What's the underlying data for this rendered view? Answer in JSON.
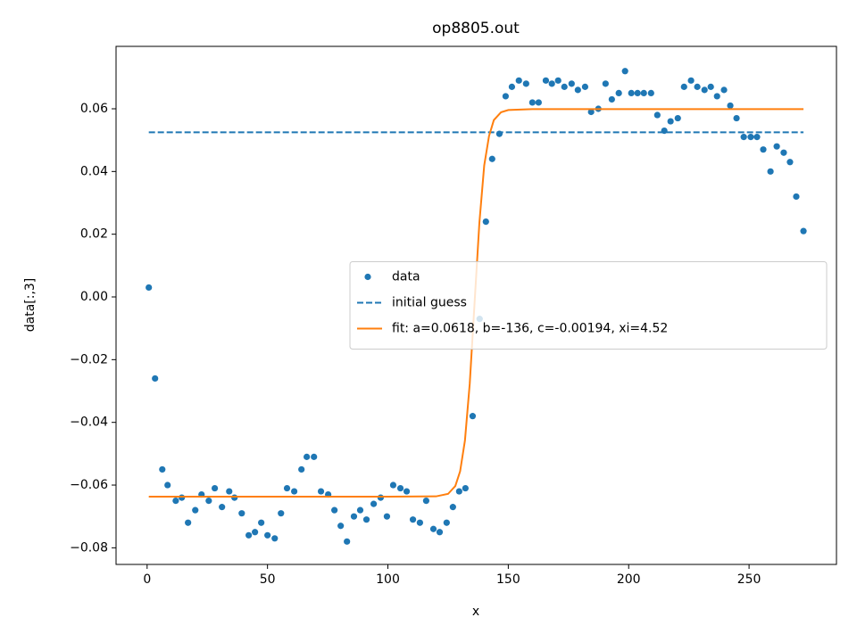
{
  "chart_data": {
    "type": "scatter",
    "title": "op8805.out",
    "x_label": "x",
    "y_label": "data[:,3]",
    "xlim": [
      -12.9,
      286.3
    ],
    "ylim": [
      -0.0853,
      0.0799
    ],
    "xticks": [
      0,
      50,
      100,
      150,
      200,
      250
    ],
    "yticks": [
      {
        "value": -0.08,
        "label": "−0.08"
      },
      {
        "value": -0.06,
        "label": "−0.06"
      },
      {
        "value": -0.04,
        "label": "−0.04"
      },
      {
        "value": -0.02,
        "label": "−0.02"
      },
      {
        "value": 0,
        "label": "0.00"
      },
      {
        "value": 0.02,
        "label": "0.02"
      },
      {
        "value": 0.04,
        "label": "0.04"
      },
      {
        "value": 0.06,
        "label": "0.06"
      }
    ],
    "legend": "center right",
    "series": [
      {
        "name": "data",
        "style": "scatter",
        "color": "#1f77b4",
        "x": [
          0.7,
          3.3,
          6.3,
          8.5,
          11.9,
          14.4,
          17.0,
          20.0,
          22.6,
          25.6,
          28.1,
          31.1,
          34.1,
          36.3,
          39.3,
          42.2,
          44.8,
          47.4,
          50.0,
          53.0,
          55.6,
          58.1,
          61.1,
          64.1,
          66.3,
          69.3,
          72.2,
          75.2,
          77.8,
          80.4,
          83.0,
          85.9,
          88.5,
          91.1,
          94.1,
          97.0,
          99.6,
          102.2,
          105.2,
          107.8,
          110.4,
          113.3,
          115.9,
          118.9,
          121.5,
          124.4,
          127.0,
          129.6,
          132.2,
          135.2,
          138.1,
          140.7,
          143.3,
          146.3,
          148.9,
          151.5,
          154.4,
          157.4,
          160.0,
          162.6,
          165.6,
          168.1,
          170.7,
          173.3,
          176.3,
          178.9,
          181.9,
          184.4,
          187.4,
          190.4,
          193.0,
          195.9,
          198.5,
          201.1,
          203.7,
          206.3,
          209.3,
          211.9,
          214.8,
          217.4,
          220.4,
          223.0,
          225.9,
          228.5,
          231.5,
          234.1,
          236.7,
          239.6,
          242.2,
          244.8,
          247.8,
          250.7,
          253.3,
          255.9,
          258.9,
          261.5,
          264.4,
          267.0,
          269.6,
          272.6
        ],
        "values": [
          0.003,
          -0.026,
          -0.055,
          -0.06,
          -0.065,
          -0.064,
          -0.072,
          -0.068,
          -0.063,
          -0.065,
          -0.061,
          -0.067,
          -0.062,
          -0.064,
          -0.069,
          -0.076,
          -0.075,
          -0.072,
          -0.076,
          -0.077,
          -0.069,
          -0.061,
          -0.062,
          -0.055,
          -0.051,
          -0.051,
          -0.062,
          -0.063,
          -0.068,
          -0.073,
          -0.078,
          -0.07,
          -0.068,
          -0.071,
          -0.066,
          -0.064,
          -0.07,
          -0.06,
          -0.061,
          -0.062,
          -0.071,
          -0.072,
          -0.065,
          -0.074,
          -0.075,
          -0.072,
          -0.067,
          -0.062,
          -0.061,
          -0.038,
          -0.007,
          0.024,
          0.044,
          0.052,
          0.064,
          0.067,
          0.069,
          0.068,
          0.062,
          0.062,
          0.069,
          0.068,
          0.069,
          0.067,
          0.068,
          0.066,
          0.067,
          0.059,
          0.06,
          0.068,
          0.063,
          0.065,
          0.072,
          0.065,
          0.065,
          0.065,
          0.065,
          0.058,
          0.053,
          0.056,
          0.057,
          0.067,
          0.069,
          0.067,
          0.066,
          0.067,
          0.064,
          0.066,
          0.061,
          0.057,
          0.051,
          0.051,
          0.051,
          0.047,
          0.04,
          0.048,
          0.046,
          0.043,
          0.032,
          0.021
        ]
      },
      {
        "name": "initial guess",
        "style": "dashed",
        "color": "#1f77b4",
        "x": [
          0.7,
          272.6
        ],
        "values": [
          0.0525,
          0.0525
        ]
      },
      {
        "name": "fit: a=0.0618, b=-136, c=-0.00194, xi=4.52",
        "style": "solid",
        "color": "#ff7f0e",
        "x": [
          0.7,
          100,
          120,
          125,
          128,
          130,
          132,
          134,
          136,
          138,
          140,
          142,
          144,
          147,
          150,
          160,
          272.6
        ],
        "values": [
          -0.0637,
          -0.0637,
          -0.0636,
          -0.0628,
          -0.0603,
          -0.0556,
          -0.0458,
          -0.0276,
          -0.0019,
          0.0237,
          0.0419,
          0.0513,
          0.0564,
          0.0589,
          0.0596,
          0.0599,
          0.0599
        ]
      }
    ]
  }
}
